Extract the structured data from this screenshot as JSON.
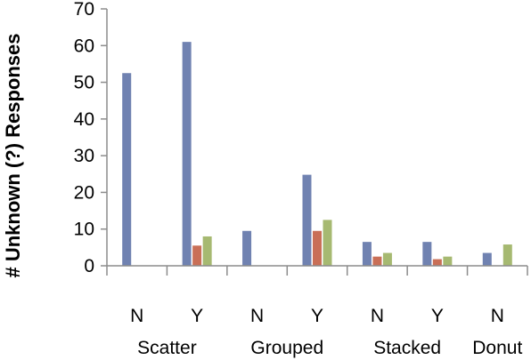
{
  "chart_data": {
    "type": "bar",
    "ylabel": "# Unknown (?) Responses",
    "ylim": [
      0,
      70
    ],
    "yticks": [
      0,
      10,
      20,
      30,
      40,
      50,
      60,
      70
    ],
    "categories": [
      "N",
      "Y",
      "N",
      "Y",
      "N",
      "Y",
      "N"
    ],
    "groups": [
      {
        "label": "Scatter",
        "span": [
          0,
          1
        ]
      },
      {
        "label": "Grouped",
        "span": [
          2,
          3
        ]
      },
      {
        "label": "Stacked",
        "span": [
          4,
          5
        ]
      },
      {
        "label": "Donut",
        "span": [
          6,
          6
        ]
      }
    ],
    "series": [
      {
        "color": "#7082b1",
        "values": [
          52.5,
          61,
          9.5,
          24.8,
          6.5,
          6.5,
          3.5
        ]
      },
      {
        "color": "#c96f57",
        "values": [
          0,
          5.5,
          0,
          9.5,
          2.5,
          1.8,
          0
        ]
      },
      {
        "color": "#a6b971",
        "values": [
          0,
          8,
          0,
          12.5,
          3.5,
          2.5,
          5.8
        ]
      }
    ],
    "grid": false,
    "legend": "none"
  }
}
